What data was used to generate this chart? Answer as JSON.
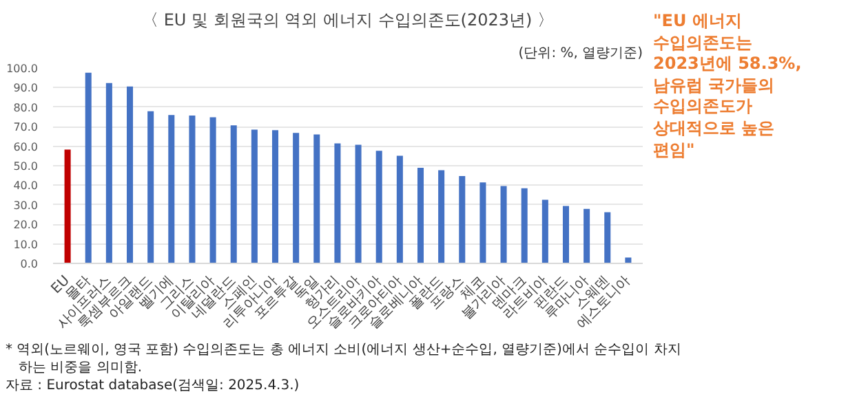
{
  "chart_data": {
    "type": "bar",
    "title": "〈 EU 및 회원국의 역외 에너지 수입의존도(2023년) 〉",
    "categories": [
      "EU",
      "몰타",
      "사이프러스",
      "룩셈부르크",
      "아일랜드",
      "벨기에",
      "그리스",
      "이탈리아",
      "네덜란드",
      "스페인",
      "리투아니아",
      "포르투갈",
      "독일",
      "헝가리",
      "오스트리아",
      "슬로바키아",
      "크로아티아",
      "슬로베니아",
      "폴란드",
      "프랑스",
      "체코",
      "불가리아",
      "덴마크",
      "라트비아",
      "핀란드",
      "루마니아",
      "스웨덴",
      "에스토니아"
    ],
    "values": [
      58.3,
      97.6,
      92.3,
      90.6,
      77.9,
      76.0,
      75.7,
      74.8,
      70.7,
      68.5,
      68.2,
      66.8,
      66.0,
      61.4,
      60.7,
      57.7,
      55.1,
      48.9,
      47.7,
      44.7,
      41.5,
      39.6,
      38.5,
      32.6,
      29.4,
      27.9,
      26.2,
      3.0
    ],
    "colors": [
      "#c00000",
      "#4472c4",
      "#4472c4",
      "#4472c4",
      "#4472c4",
      "#4472c4",
      "#4472c4",
      "#4472c4",
      "#4472c4",
      "#4472c4",
      "#4472c4",
      "#4472c4",
      "#4472c4",
      "#4472c4",
      "#4472c4",
      "#4472c4",
      "#4472c4",
      "#4472c4",
      "#4472c4",
      "#4472c4",
      "#4472c4",
      "#4472c4",
      "#4472c4",
      "#4472c4",
      "#4472c4",
      "#4472c4",
      "#4472c4",
      "#4472c4"
    ],
    "ylim": [
      0,
      100
    ],
    "yticks": [
      {
        "value": 0,
        "label": "0.0"
      },
      {
        "value": 10,
        "label": "10.0"
      },
      {
        "value": 20,
        "label": "20.0"
      },
      {
        "value": 30,
        "label": "30.0"
      },
      {
        "value": 40,
        "label": "40.0"
      },
      {
        "value": 50,
        "label": "50.0"
      },
      {
        "value": 60,
        "label": "60.0"
      },
      {
        "value": 70,
        "label": "70.0"
      },
      {
        "value": 80,
        "label": "80.0"
      },
      {
        "value": 90,
        "label": "90.0"
      },
      {
        "value": 100,
        "label": "100.0"
      }
    ],
    "grid": "y",
    "annotations": [
      "(단위: %, 열량기준)",
      "\"EU 에너지\n수입의존도는\n2023년에 58.3%,\n남유럽 국가들의\n수입의존도가\n상대적으로 높은\n편임\"",
      "* 역외(노르웨이, 영국 포함) 수입의존도는 총 에너지 소비(에너지 생산+순수입, 열량기준)에서 순수입이 차지\n   하는 비중을 의미함.",
      "자료 : Eurostat database(검색일: 2025.4.3.)"
    ]
  }
}
